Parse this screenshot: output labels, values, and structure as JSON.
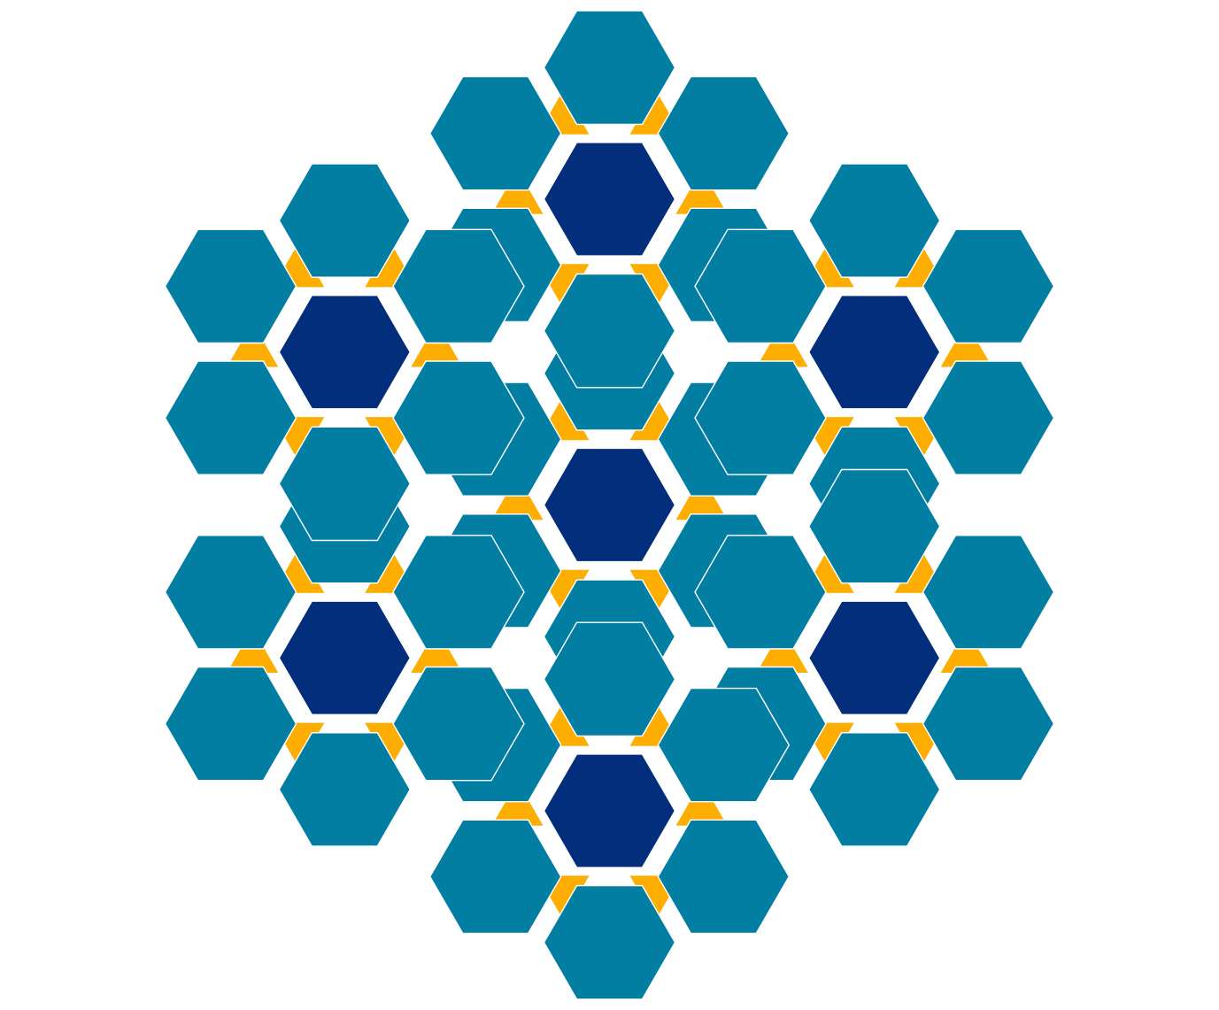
{
  "figure": {
    "kind": "geometric-tiling",
    "motif": "star-of-hexagons",
    "colors": {
      "background": "#ffffff",
      "light_hexagon": "#037EA3",
      "dark_hexagon": "#032E7B",
      "triangle": "#FEAE00"
    }
  }
}
